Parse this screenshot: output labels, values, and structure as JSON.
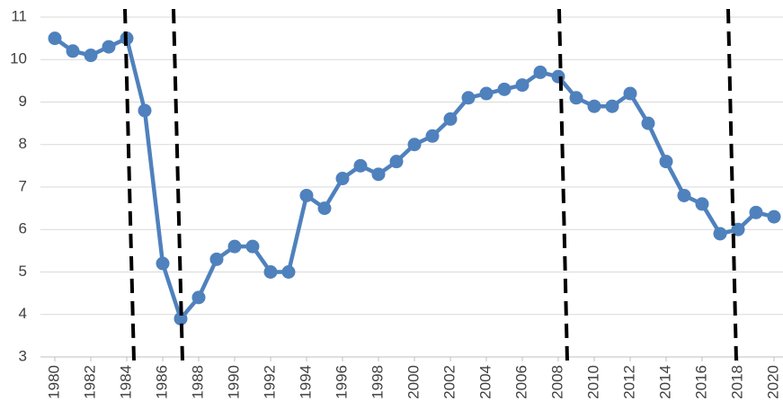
{
  "chart_data": {
    "type": "line",
    "x": [
      1980,
      1981,
      1982,
      1983,
      1984,
      1985,
      1986,
      1987,
      1988,
      1989,
      1990,
      1991,
      1992,
      1993,
      1994,
      1995,
      1996,
      1997,
      1998,
      1999,
      2000,
      2001,
      2002,
      2003,
      2004,
      2005,
      2006,
      2007,
      2008,
      2009,
      2010,
      2011,
      2012,
      2013,
      2014,
      2015,
      2016,
      2017,
      2018,
      2019,
      2020
    ],
    "series": [
      {
        "color": "#4f81bd",
        "values": [
          10.5,
          10.2,
          10.1,
          10.3,
          10.5,
          8.8,
          5.2,
          3.9,
          4.4,
          5.3,
          5.6,
          5.6,
          5.0,
          5.0,
          6.8,
          6.5,
          7.2,
          7.5,
          7.3,
          7.6,
          8.0,
          8.2,
          8.6,
          9.1,
          9.2,
          9.3,
          9.4,
          9.7,
          9.6,
          9.1,
          8.9,
          8.9,
          9.2,
          8.5,
          7.6,
          6.8,
          6.6,
          5.9,
          6.0,
          6.4,
          6.3
        ]
      }
    ],
    "xlim": [
      1980,
      2020
    ],
    "xticks": [
      1980,
      1982,
      1984,
      1986,
      1988,
      1990,
      1992,
      1994,
      1996,
      1998,
      2000,
      2002,
      2004,
      2006,
      2008,
      2010,
      2012,
      2014,
      2016,
      2018,
      2020
    ],
    "ylim": [
      3,
      11
    ],
    "yticks": [
      3,
      4,
      5,
      6,
      7,
      8,
      9,
      10,
      11
    ],
    "grid": true
  }
}
